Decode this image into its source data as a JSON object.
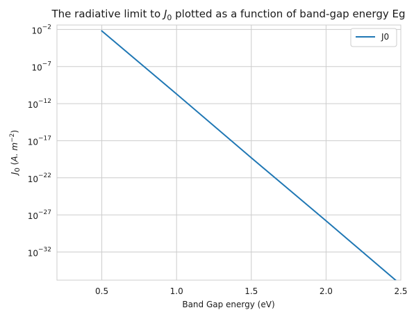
{
  "chart_data": {
    "type": "line",
    "title": "The radiative limit to J₀ plotted as a function of band-gap energy Eg",
    "title_prefix": "The radiative limit to ",
    "title_var": "J",
    "title_sub": "0",
    "title_suffix": " plotted as a function of band-gap energy Eg",
    "xlabel": "Band Gap energy (eV)",
    "ylabel": "J₀ (A. m⁻²)",
    "ylabel_parts": {
      "var": "J",
      "sub": "0",
      "units_open": " (",
      "units": "A. m",
      "exp": "−2",
      "units_close": ")"
    },
    "xlim": [
      0.2,
      2.5
    ],
    "ylim_log10": [
      -35.8,
      -1.4
    ],
    "y_scale": "log",
    "grid": true,
    "legend_position": "top-right",
    "x_ticks": [
      "0.5",
      "1.0",
      "1.5",
      "2.0",
      "2.5"
    ],
    "x_tick_values": [
      0.5,
      1.0,
      1.5,
      2.0,
      2.5
    ],
    "y_ticks": [
      {
        "base": "10",
        "exp": "−2",
        "value": -2
      },
      {
        "base": "10",
        "exp": "−7",
        "value": -7
      },
      {
        "base": "10",
        "exp": "−12",
        "value": -12
      },
      {
        "base": "10",
        "exp": "−17",
        "value": -17
      },
      {
        "base": "10",
        "exp": "−22",
        "value": -22
      },
      {
        "base": "10",
        "exp": "−27",
        "value": -27
      },
      {
        "base": "10",
        "exp": "−32",
        "value": -32
      }
    ],
    "series": [
      {
        "name": "J0",
        "color": "#1f77b4",
        "x": [
          0.5,
          1.0,
          1.5,
          2.0,
          2.5
        ],
        "y_log10": [
          -2.2,
          -10.7,
          -19.3,
          -27.8,
          -36.4
        ]
      }
    ]
  }
}
